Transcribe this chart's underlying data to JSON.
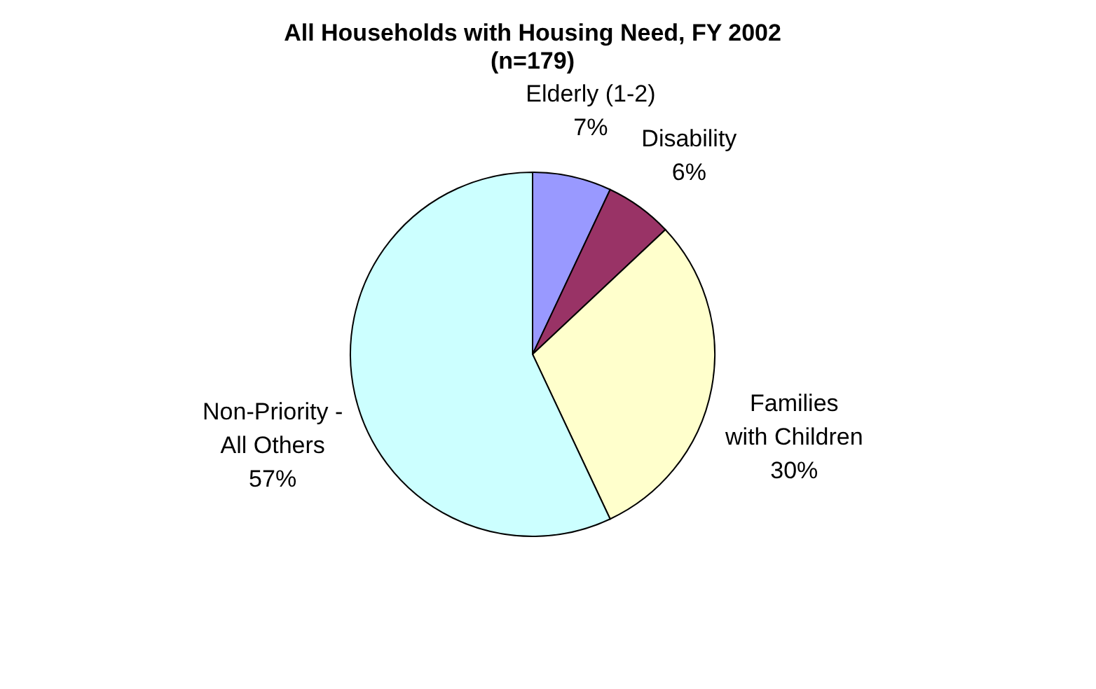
{
  "chart_data": {
    "type": "pie",
    "title": "All Households with Housing Need, FY 2002",
    "subtitle": "(n=179)",
    "categories": [
      "Elderly (1-2)",
      "Disability",
      "Families with Children",
      "Non-Priority - All Others"
    ],
    "values": [
      7,
      6,
      30,
      57
    ],
    "colors": [
      "#9999ff",
      "#993366",
      "#ffffcc",
      "#ccffff"
    ],
    "value_labels": [
      "7%",
      "6%",
      "30%",
      "57%"
    ],
    "legend": false
  }
}
